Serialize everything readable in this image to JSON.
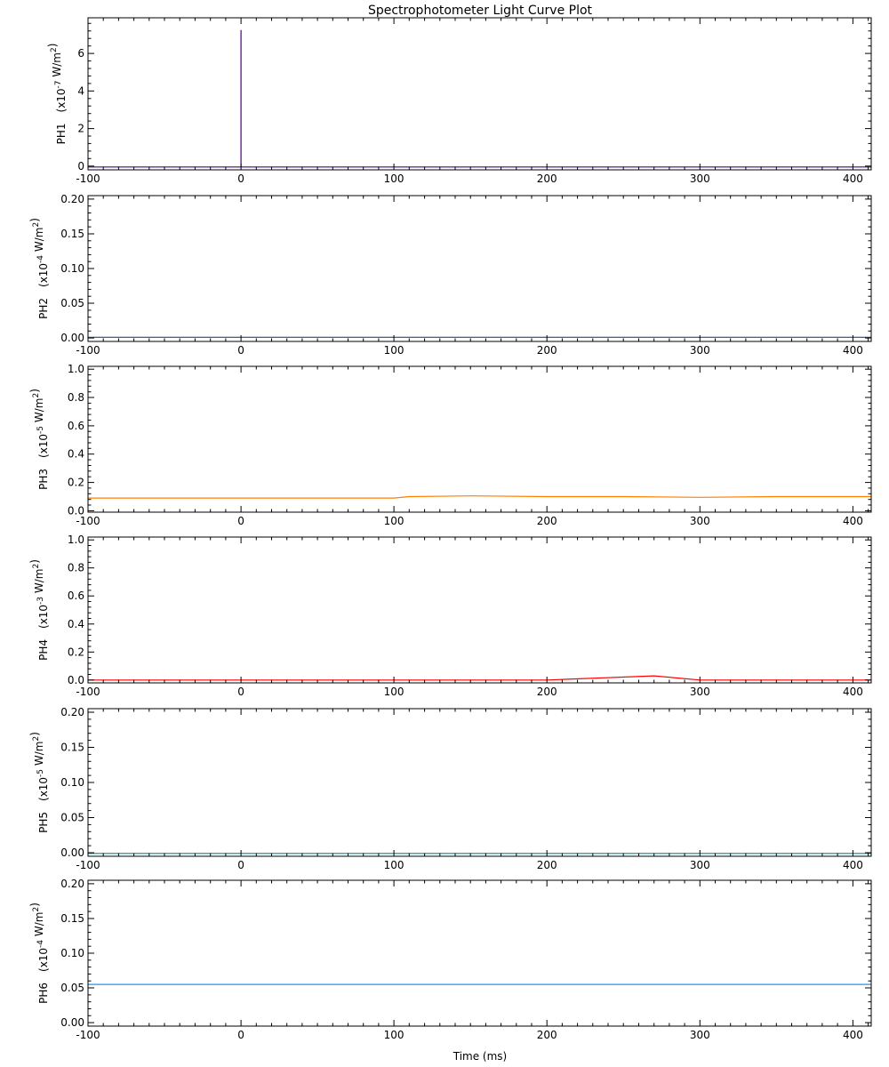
{
  "title": "Spectrophotometer Light Curve Plot",
  "xlabel": "Time (ms)",
  "chart_data": [
    {
      "type": "line",
      "channel": "PH1",
      "ylabel_scale": "(x10",
      "ylabel_exp": "-7",
      "ylabel_unit": " W/m",
      "ylabel_sq": "2",
      "ylabel_close": ")",
      "color": "#4b0082",
      "xlim": [
        -100,
        412
      ],
      "ylim": [
        -0.2,
        7.9
      ],
      "yticks": [
        0,
        2,
        4,
        6
      ],
      "ytick_labels": [
        "0",
        "2",
        "4",
        "6"
      ],
      "series": [
        {
          "x": [
            -100,
            0,
            0,
            0,
            0.5,
            412
          ],
          "y": [
            -0.05,
            -0.05,
            7.25,
            -0.05,
            -0.05,
            -0.05
          ]
        }
      ]
    },
    {
      "type": "line",
      "channel": "PH2",
      "ylabel_scale": "(x10",
      "ylabel_exp": "-4",
      "ylabel_unit": " W/m",
      "ylabel_sq": "2",
      "ylabel_close": ")",
      "color": "#1f4e79",
      "xlim": [
        -100,
        412
      ],
      "ylim": [
        -0.005,
        0.205
      ],
      "yticks": [
        0.0,
        0.05,
        0.1,
        0.15,
        0.2
      ],
      "ytick_labels": [
        "0.00",
        "0.05",
        "0.10",
        "0.15",
        "0.20"
      ],
      "series": [
        {
          "x": [
            -100,
            412
          ],
          "y": [
            0.001,
            0.001
          ]
        }
      ]
    },
    {
      "type": "line",
      "channel": "PH3",
      "ylabel_scale": "(x10",
      "ylabel_exp": "-5",
      "ylabel_unit": " W/m",
      "ylabel_sq": "2",
      "ylabel_close": ")",
      "color": "#ff7f00",
      "xlim": [
        -100,
        412
      ],
      "ylim": [
        -0.01,
        1.02
      ],
      "yticks": [
        0.0,
        0.2,
        0.4,
        0.6,
        0.8,
        1.0
      ],
      "ytick_labels": [
        "0.0",
        "0.2",
        "0.4",
        "0.6",
        "0.8",
        "1.0"
      ],
      "series": [
        {
          "x": [
            -100,
            0,
            50,
            100,
            110,
            150,
            200,
            250,
            300,
            350,
            412
          ],
          "y": [
            0.09,
            0.09,
            0.09,
            0.09,
            0.1,
            0.105,
            0.1,
            0.1,
            0.095,
            0.1,
            0.1
          ]
        }
      ]
    },
    {
      "type": "line",
      "channel": "PH4",
      "ylabel_scale": "(x10",
      "ylabel_exp": "-3",
      "ylabel_unit": " W/m",
      "ylabel_sq": "2",
      "ylabel_close": ")",
      "color": "#ff0000",
      "xlim": [
        -100,
        412
      ],
      "ylim": [
        -0.02,
        1.02
      ],
      "yticks": [
        0.0,
        0.2,
        0.4,
        0.6,
        0.8,
        1.0
      ],
      "ytick_labels": [
        "0.0",
        "0.2",
        "0.4",
        "0.6",
        "0.8",
        "1.0"
      ],
      "series": [
        {
          "x": [
            -100,
            0,
            100,
            200,
            270,
            300,
            412
          ],
          "y": [
            0.0,
            0.0,
            0.0,
            0.0,
            0.03,
            0.0,
            0.0
          ]
        }
      ]
    },
    {
      "type": "line",
      "channel": "PH5",
      "ylabel_scale": "(x10",
      "ylabel_exp": "-5",
      "ylabel_unit": " W/m",
      "ylabel_sq": "2",
      "ylabel_close": ")",
      "color": "#008b8b",
      "xlim": [
        -100,
        412
      ],
      "ylim": [
        -0.005,
        0.205
      ],
      "yticks": [
        0.0,
        0.05,
        0.1,
        0.15,
        0.2
      ],
      "ytick_labels": [
        "0.00",
        "0.05",
        "0.10",
        "0.15",
        "0.20"
      ],
      "series": [
        {
          "x": [
            -100,
            412
          ],
          "y": [
            -0.001,
            -0.001
          ]
        }
      ]
    },
    {
      "type": "line",
      "channel": "PH6",
      "ylabel_scale": "(x10",
      "ylabel_exp": "-4",
      "ylabel_unit": " W/m",
      "ylabel_sq": "2",
      "ylabel_close": ")",
      "color": "#1e90ff",
      "xlim": [
        -100,
        412
      ],
      "ylim": [
        -0.005,
        0.205
      ],
      "yticks": [
        0.0,
        0.05,
        0.1,
        0.15,
        0.2
      ],
      "ytick_labels": [
        "0.00",
        "0.05",
        "0.10",
        "0.15",
        "0.20"
      ],
      "series": [
        {
          "x": [
            -100,
            412
          ],
          "y": [
            0.055,
            0.055
          ]
        }
      ]
    }
  ],
  "xticks": [
    -100,
    0,
    100,
    200,
    300,
    400
  ],
  "xtick_labels": [
    "-100",
    "0",
    "100",
    "200",
    "300",
    "400"
  ]
}
